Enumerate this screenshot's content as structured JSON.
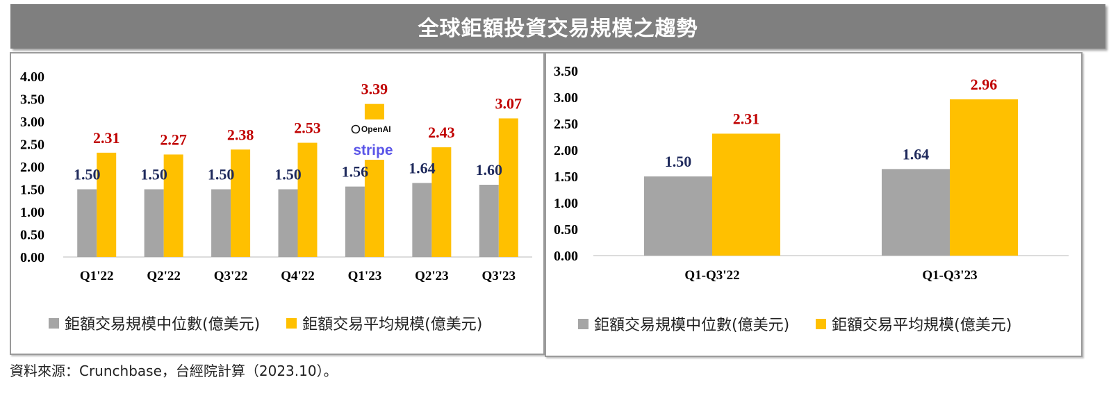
{
  "title": "全球鉅額投資交易規模之趨勢",
  "source": "資料來源：Crunchbase，台經院計算（2023.10）。",
  "legend": {
    "median": "鉅額交易規模中位數(億美元)",
    "average": "鉅額交易平均規模(億美元)"
  },
  "colors": {
    "median": "#a5a5a5",
    "average": "#ffc000",
    "median_label": "#1f2a5c",
    "average_label": "#c00000"
  },
  "logos": {
    "openai": "OpenAI",
    "stripe": "stripe"
  },
  "chart_data": [
    {
      "type": "bar",
      "categories": [
        "Q1'22",
        "Q2'22",
        "Q3'22",
        "Q4'22",
        "Q1'23",
        "Q2'23",
        "Q3'23"
      ],
      "series": [
        {
          "name": "鉅額交易規模中位數(億美元)",
          "values": [
            1.5,
            1.5,
            1.5,
            1.5,
            1.56,
            1.64,
            1.6
          ]
        },
        {
          "name": "鉅額交易平均規模(億美元)",
          "values": [
            2.31,
            2.27,
            2.38,
            2.53,
            3.39,
            2.43,
            3.07
          ]
        }
      ],
      "ylim": [
        0,
        4.0
      ],
      "yticks": [
        "0.00",
        "0.50",
        "1.00",
        "1.50",
        "2.00",
        "2.50",
        "3.00",
        "3.50",
        "4.00"
      ],
      "grid": false,
      "legend_position": "bottom"
    },
    {
      "type": "bar",
      "categories": [
        "Q1-Q3'22",
        "Q1-Q3'23"
      ],
      "series": [
        {
          "name": "鉅額交易規模中位數(億美元)",
          "values": [
            1.5,
            1.64
          ]
        },
        {
          "name": "鉅額交易平均規模(億美元)",
          "values": [
            2.31,
            2.96
          ]
        }
      ],
      "ylim": [
        0,
        3.5
      ],
      "yticks": [
        "0.00",
        "0.50",
        "1.00",
        "1.50",
        "2.00",
        "2.50",
        "3.00",
        "3.50"
      ],
      "grid": false,
      "legend_position": "bottom"
    }
  ]
}
